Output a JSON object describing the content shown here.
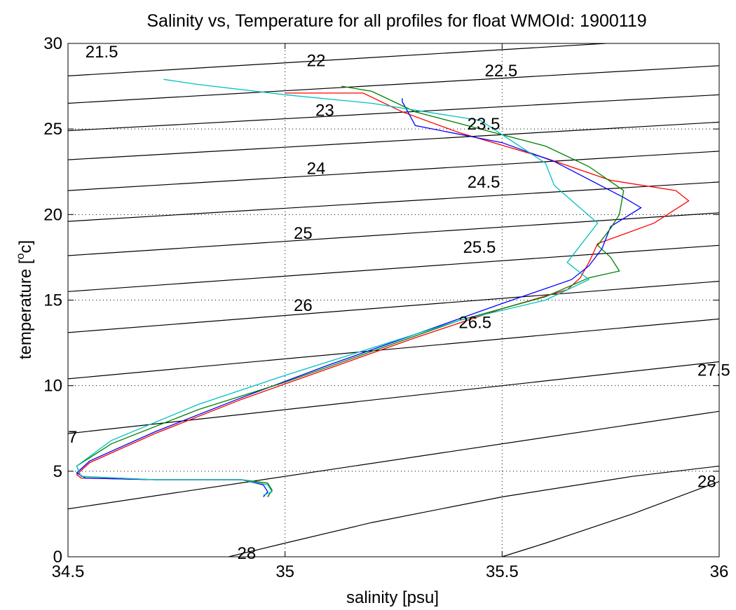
{
  "chart_data": {
    "type": "line",
    "title": "Salinity vs, Temperature for all profiles for float WMOId: 1900119",
    "xlabel": "salinity [psu]",
    "ylabel": "temperature [",
    "ylabel_sup": "o",
    "ylabel_tail": "c]",
    "xlim": [
      34.5,
      36
    ],
    "ylim": [
      0,
      30
    ],
    "x_ticks": [
      "34.5",
      "35",
      "35.5",
      "36"
    ],
    "y_ticks": [
      "0",
      "5",
      "10",
      "15",
      "20",
      "25",
      "30"
    ],
    "x_tick_values": [
      34.5,
      35,
      35.5,
      36
    ],
    "y_tick_values": [
      0,
      5,
      10,
      15,
      20,
      25,
      30
    ],
    "grid": "dotted",
    "contours": {
      "lines": [
        {
          "t_left": 30.5,
          "t_right": 32.8
        },
        {
          "t_left": 28.1,
          "t_right": 30.4
        },
        {
          "t_left": 26.5,
          "t_right": 28.7
        },
        {
          "t_left": 24.9,
          "t_right": 27.0
        },
        {
          "t_left": 23.2,
          "t_right": 25.4
        },
        {
          "t_left": 21.4,
          "t_right": 23.7
        },
        {
          "t_left": 19.6,
          "t_right": 21.9
        },
        {
          "t_left": 17.6,
          "t_right": 20.1
        },
        {
          "t_left": 15.5,
          "t_right": 18.2
        },
        {
          "t_left": 13.1,
          "t_right": 16.1
        },
        {
          "t_left": 10.4,
          "t_right": 13.9
        },
        {
          "t_left": 7.2,
          "t_right": 11.4
        },
        {
          "t_left": 2.8,
          "t_right": 8.5
        },
        {
          "curve": [
            [
              34.87,
              0
            ],
            [
              35.0,
              0.8
            ],
            [
              35.2,
              2.0
            ],
            [
              35.5,
              3.5
            ],
            [
              35.8,
              4.7
            ],
            [
              36.0,
              5.3
            ]
          ]
        },
        {
          "curve": [
            [
              35.5,
              0
            ],
            [
              35.6,
              0.8
            ],
            [
              35.8,
              2.5
            ],
            [
              36.0,
              4.4
            ]
          ]
        }
      ],
      "labels": [
        {
          "text": "21.5",
          "s": 34.54,
          "t": 29.5
        },
        {
          "text": "22",
          "s": 35.05,
          "t": 29.0
        },
        {
          "text": "22.5",
          "s": 35.46,
          "t": 28.4
        },
        {
          "text": "23",
          "s": 35.07,
          "t": 26.1
        },
        {
          "text": "23.5",
          "s": 35.42,
          "t": 25.3
        },
        {
          "text": "24",
          "s": 35.05,
          "t": 22.7
        },
        {
          "text": "24.5",
          "s": 35.42,
          "t": 21.9
        },
        {
          "text": "25",
          "s": 35.02,
          "t": 18.9
        },
        {
          "text": "25.5",
          "s": 35.41,
          "t": 18.1
        },
        {
          "text": "26",
          "s": 35.02,
          "t": 14.7
        },
        {
          "text": "26.5",
          "s": 35.4,
          "t": 13.7
        },
        {
          "text": "27.5",
          "s": 35.95,
          "t": 10.9
        },
        {
          "text": "7",
          "s": 34.5,
          "t": 7.0
        },
        {
          "text": "28",
          "s": 34.89,
          "t": 0.2
        },
        {
          "text": "28",
          "s": 35.95,
          "t": 4.4
        }
      ]
    },
    "series": [
      {
        "color": "#ff0000",
        "x": [
          35.0,
          35.18,
          35.27,
          35.4,
          35.6,
          35.75,
          35.9,
          35.93,
          35.85,
          35.72,
          35.7,
          35.68,
          35.65,
          35.5,
          35.3,
          35.1,
          34.9,
          34.7,
          34.55,
          34.52,
          34.53,
          34.7,
          34.9,
          34.96,
          34.97,
          34.96
        ],
        "y": [
          27.1,
          27.1,
          26.0,
          24.8,
          23.3,
          22.0,
          21.4,
          20.8,
          19.5,
          18.3,
          17.2,
          16.3,
          15.6,
          14.5,
          12.8,
          11.0,
          9.2,
          7.2,
          5.5,
          4.8,
          4.6,
          4.5,
          4.5,
          4.3,
          3.9,
          3.5
        ]
      },
      {
        "color": "#0000ff",
        "x": [
          35.27,
          35.27,
          35.3,
          35.5,
          35.62,
          35.78,
          35.82,
          35.75,
          35.73,
          35.7,
          35.66,
          35.5,
          35.3,
          35.1,
          34.9,
          34.7,
          34.55,
          34.52,
          34.54,
          34.7,
          34.9,
          34.95,
          34.96,
          34.95
        ],
        "y": [
          26.8,
          26.6,
          25.2,
          24.2,
          23.1,
          21.0,
          20.4,
          19.3,
          18.0,
          17.0,
          16.2,
          14.8,
          13.0,
          11.2,
          9.3,
          7.3,
          5.6,
          4.9,
          4.6,
          4.5,
          4.5,
          4.2,
          3.8,
          3.5
        ]
      },
      {
        "color": "#008000",
        "x": [
          35.13,
          35.2,
          35.3,
          35.45,
          35.6,
          35.7,
          35.78,
          35.77,
          35.75,
          35.72,
          35.75,
          35.77,
          35.7,
          35.6,
          35.4,
          35.2,
          35.0,
          34.8,
          34.6,
          34.52,
          34.53,
          34.7,
          34.9,
          34.96,
          34.97,
          34.96
        ],
        "y": [
          27.5,
          27.2,
          26.0,
          25.0,
          24.0,
          22.8,
          21.4,
          20.0,
          19.2,
          18.2,
          17.5,
          16.7,
          16.3,
          15.2,
          13.8,
          12.0,
          10.2,
          8.6,
          6.6,
          5.3,
          4.7,
          4.5,
          4.5,
          4.3,
          3.9,
          3.5
        ]
      },
      {
        "color": "#00bfbf",
        "x": [
          34.72,
          34.8,
          35.0,
          35.2,
          35.45,
          35.6,
          35.62,
          35.72,
          35.65,
          35.68,
          35.7,
          35.6,
          35.4,
          35.2,
          35.0,
          34.8,
          34.6,
          34.52,
          34.53,
          34.7,
          34.9,
          34.96,
          34.97,
          34.95
        ],
        "y": [
          27.9,
          27.6,
          27.0,
          26.5,
          25.5,
          23.0,
          21.7,
          19.5,
          17.2,
          16.6,
          16.2,
          15.0,
          13.8,
          12.2,
          10.6,
          8.9,
          6.8,
          5.3,
          4.7,
          4.5,
          4.5,
          4.2,
          3.8,
          3.6
        ]
      }
    ]
  }
}
